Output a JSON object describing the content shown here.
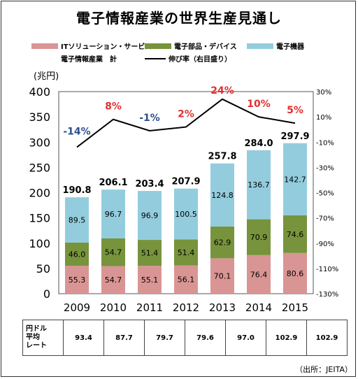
{
  "title": "電子情報産業の世界生産見通し",
  "y_unit": "(兆円)",
  "legend": [
    {
      "label": "ITソリューション・サービス",
      "color": "#d99594"
    },
    {
      "label": "電子部品・デバイス",
      "color": "#77933c"
    },
    {
      "label": "電子機器",
      "color": "#93cddd"
    },
    {
      "label": "電子情報産業　計",
      "color": "#ffffff"
    },
    {
      "label": "伸び率（右目盛り）",
      "color": "#000000"
    }
  ],
  "chart_data": {
    "type": "bar",
    "stacked": true,
    "categories": [
      "2009",
      "2010",
      "2011",
      "2012",
      "2013",
      "2014",
      "2015"
    ],
    "series": [
      {
        "name": "ITソリューション・サービス",
        "values": [
          55.3,
          54.7,
          55.1,
          56.1,
          70.1,
          76.4,
          80.6
        ],
        "color": "#d99594"
      },
      {
        "name": "電子部品・デバイス",
        "values": [
          46.0,
          54.7,
          51.4,
          51.4,
          62.9,
          70.9,
          74.6
        ],
        "color": "#77933c"
      },
      {
        "name": "電子機器",
        "values": [
          89.5,
          96.7,
          96.9,
          100.5,
          124.8,
          136.7,
          142.7
        ],
        "color": "#93cddd"
      }
    ],
    "totals": [
      "190.8",
      "206.1",
      "203.4",
      "207.9",
      "257.8",
      "284.0",
      "297.9"
    ],
    "segment_labels": [
      [
        "55.3",
        "54.7",
        "55.1",
        "56.1",
        "70.1",
        "76.4",
        "80.6"
      ],
      [
        "46.0",
        "54.7",
        "51.4",
        "51.4",
        "62.9",
        "70.9",
        "74.6"
      ],
      [
        "89.5",
        "96.7",
        "96.9",
        "100.5",
        "124.8",
        "136.7",
        "142.7"
      ]
    ],
    "growth": {
      "name": "伸び率（右目盛り）",
      "values": [
        -14,
        8,
        -1,
        2,
        24,
        10,
        5
      ],
      "labels": [
        "-14%",
        "8%",
        "-1%",
        "2%",
        "24%",
        "10%",
        "5%"
      ]
    },
    "ylim": [
      0,
      400
    ],
    "y_ticks": [
      "0",
      "50",
      "100",
      "150",
      "200",
      "250",
      "300",
      "350",
      "400"
    ],
    "y2lim": [
      -130,
      30
    ],
    "y2_ticks": [
      "30%",
      "10%",
      "-10%",
      "-30%",
      "-50%",
      "-70%",
      "-90%",
      "-110%",
      "-130%"
    ],
    "grid": false
  },
  "yen_table": {
    "header": "円ドル\n平均\nレート",
    "values": [
      "93.4",
      "87.7",
      "79.7",
      "79.6",
      "97.0",
      "102.9",
      "102.9"
    ]
  },
  "source": "（出所：JEITA）"
}
